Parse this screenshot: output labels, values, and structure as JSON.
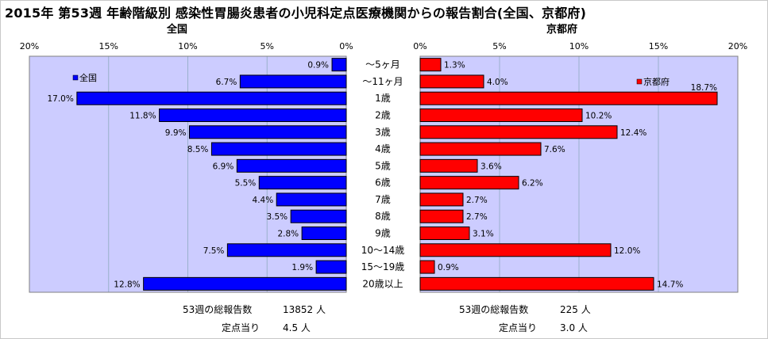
{
  "title": "2015年 第53週 年齢階級別 感染性胃腸炎患者の小児科定点医療機関からの報告割合(全国、京都府)",
  "categories": [
    "～5ヶ月",
    "～11ヶ月",
    "1歳",
    "2歳",
    "3歳",
    "4歳",
    "5歳",
    "6歳",
    "7歳",
    "8歳",
    "9歳",
    "10～14歳",
    "15～19歳",
    "20歳以上"
  ],
  "chart_data": [
    {
      "type": "bar",
      "title": "全国",
      "series": [
        {
          "name": "全国",
          "values": [
            0.9,
            6.7,
            17.0,
            11.8,
            9.9,
            8.5,
            6.9,
            5.5,
            4.4,
            3.5,
            2.8,
            7.5,
            1.9,
            12.8
          ]
        }
      ],
      "value_labels": [
        "0.9%",
        "6.7%",
        "17.0%",
        "11.8%",
        "9.9%",
        "8.5%",
        "6.9%",
        "5.5%",
        "4.4%",
        "3.5%",
        "2.8%",
        "7.5%",
        "1.9%",
        "12.8%"
      ],
      "ticks": [
        "20%",
        "15%",
        "10%",
        "5%",
        "0%"
      ],
      "xlim": [
        0,
        20
      ],
      "orientation": "horizontal-reversed",
      "grid": true,
      "legend": "top-left",
      "colors": {
        "bar": "#0000ff",
        "plot_bg": "#ccccff",
        "grid": "#9ab0cc"
      }
    },
    {
      "type": "bar",
      "title": "京都府",
      "series": [
        {
          "name": "京都府",
          "values": [
            1.3,
            4.0,
            18.7,
            10.2,
            12.4,
            7.6,
            3.6,
            6.2,
            2.7,
            2.7,
            3.1,
            12.0,
            0.9,
            14.7
          ]
        }
      ],
      "value_labels": [
        "1.3%",
        "4.0%",
        "18.7%",
        "10.2%",
        "12.4%",
        "7.6%",
        "3.6%",
        "6.2%",
        "2.7%",
        "2.7%",
        "3.1%",
        "12.0%",
        "0.9%",
        "14.7%"
      ],
      "ticks": [
        "0%",
        "5%",
        "10%",
        "15%",
        "20%"
      ],
      "xlim": [
        0,
        20
      ],
      "orientation": "horizontal",
      "grid": true,
      "legend": "top-right",
      "colors": {
        "bar": "#ff0000",
        "plot_bg": "#ccccff",
        "grid": "#9ab0cc"
      }
    }
  ],
  "footer": {
    "left": {
      "total_label": "53週の総報告数",
      "total_value": "13852 人",
      "per_site_label": "定点当り",
      "per_site_value": "4.5 人"
    },
    "right": {
      "total_label": "53週の総報告数",
      "total_value": "225 人",
      "per_site_label": "定点当り",
      "per_site_value": "3.0 人"
    }
  }
}
